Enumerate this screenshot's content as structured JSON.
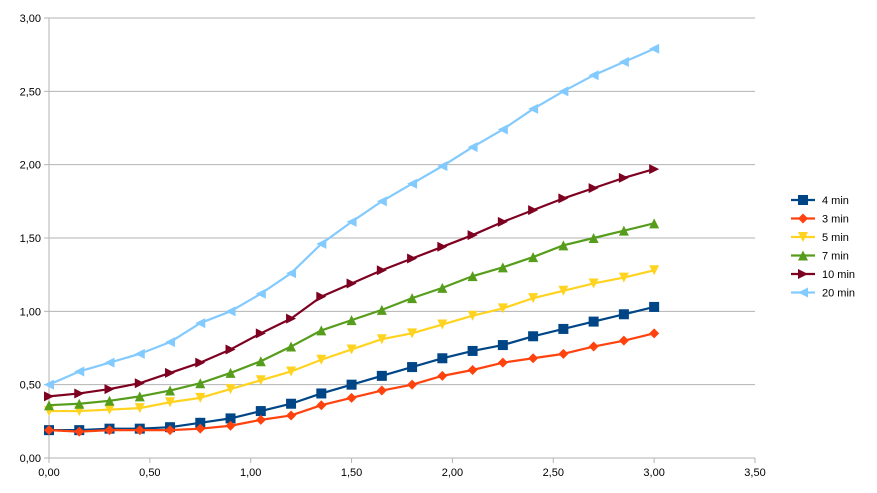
{
  "chart_data": {
    "type": "line",
    "title": "",
    "xlabel": "",
    "ylabel": "",
    "xlim": [
      0,
      3.5
    ],
    "ylim": [
      0,
      3.0
    ],
    "xticks": [
      "0,00",
      "0,50",
      "1,00",
      "1,50",
      "2,00",
      "2,50",
      "3,00",
      "3,50"
    ],
    "yticks": [
      "0,00",
      "0,50",
      "1,00",
      "1,50",
      "2,00",
      "2,50",
      "3,00"
    ],
    "grid": "horizontal",
    "legend_position": "right",
    "x": [
      0,
      0.15,
      0.3,
      0.45,
      0.6,
      0.75,
      0.9,
      1.05,
      1.2,
      1.35,
      1.5,
      1.65,
      1.8,
      1.95,
      2.1,
      2.25,
      2.4,
      2.55,
      2.7,
      2.85,
      3.0
    ],
    "series": [
      {
        "name": "4 min",
        "color": "#004586",
        "marker": "square",
        "values": [
          0.19,
          0.19,
          0.2,
          0.2,
          0.21,
          0.24,
          0.27,
          0.32,
          0.37,
          0.44,
          0.5,
          0.56,
          0.62,
          0.68,
          0.73,
          0.77,
          0.83,
          0.88,
          0.93,
          0.98,
          1.03
        ]
      },
      {
        "name": "3 min",
        "color": "#ff420e",
        "marker": "diamond",
        "values": [
          0.19,
          0.18,
          0.19,
          0.19,
          0.19,
          0.2,
          0.22,
          0.26,
          0.29,
          0.36,
          0.41,
          0.46,
          0.5,
          0.56,
          0.6,
          0.65,
          0.68,
          0.71,
          0.76,
          0.8,
          0.85
        ]
      },
      {
        "name": "5 min",
        "color": "#ffd320",
        "marker": "triangle-down",
        "values": [
          0.32,
          0.32,
          0.33,
          0.34,
          0.38,
          0.41,
          0.47,
          0.53,
          0.59,
          0.67,
          0.74,
          0.81,
          0.85,
          0.91,
          0.97,
          1.02,
          1.09,
          1.14,
          1.19,
          1.23,
          1.28
        ]
      },
      {
        "name": "7 min",
        "color": "#579d1c",
        "marker": "triangle-up",
        "values": [
          0.36,
          0.37,
          0.39,
          0.42,
          0.46,
          0.51,
          0.58,
          0.66,
          0.76,
          0.87,
          0.94,
          1.01,
          1.09,
          1.16,
          1.24,
          1.3,
          1.37,
          1.45,
          1.5,
          1.55,
          1.6
        ]
      },
      {
        "name": "10 min",
        "color": "#7e0021",
        "marker": "triangle-right",
        "values": [
          0.42,
          0.44,
          0.47,
          0.51,
          0.58,
          0.65,
          0.74,
          0.85,
          0.95,
          1.1,
          1.19,
          1.28,
          1.36,
          1.44,
          1.52,
          1.61,
          1.69,
          1.77,
          1.84,
          1.91,
          1.97
        ]
      },
      {
        "name": "20 min",
        "color": "#83caff",
        "marker": "triangle-left",
        "values": [
          0.5,
          0.59,
          0.65,
          0.71,
          0.79,
          0.92,
          1.0,
          1.12,
          1.26,
          1.46,
          1.61,
          1.75,
          1.87,
          1.99,
          2.12,
          2.24,
          2.38,
          2.5,
          2.61,
          2.7,
          2.79
        ]
      }
    ]
  }
}
